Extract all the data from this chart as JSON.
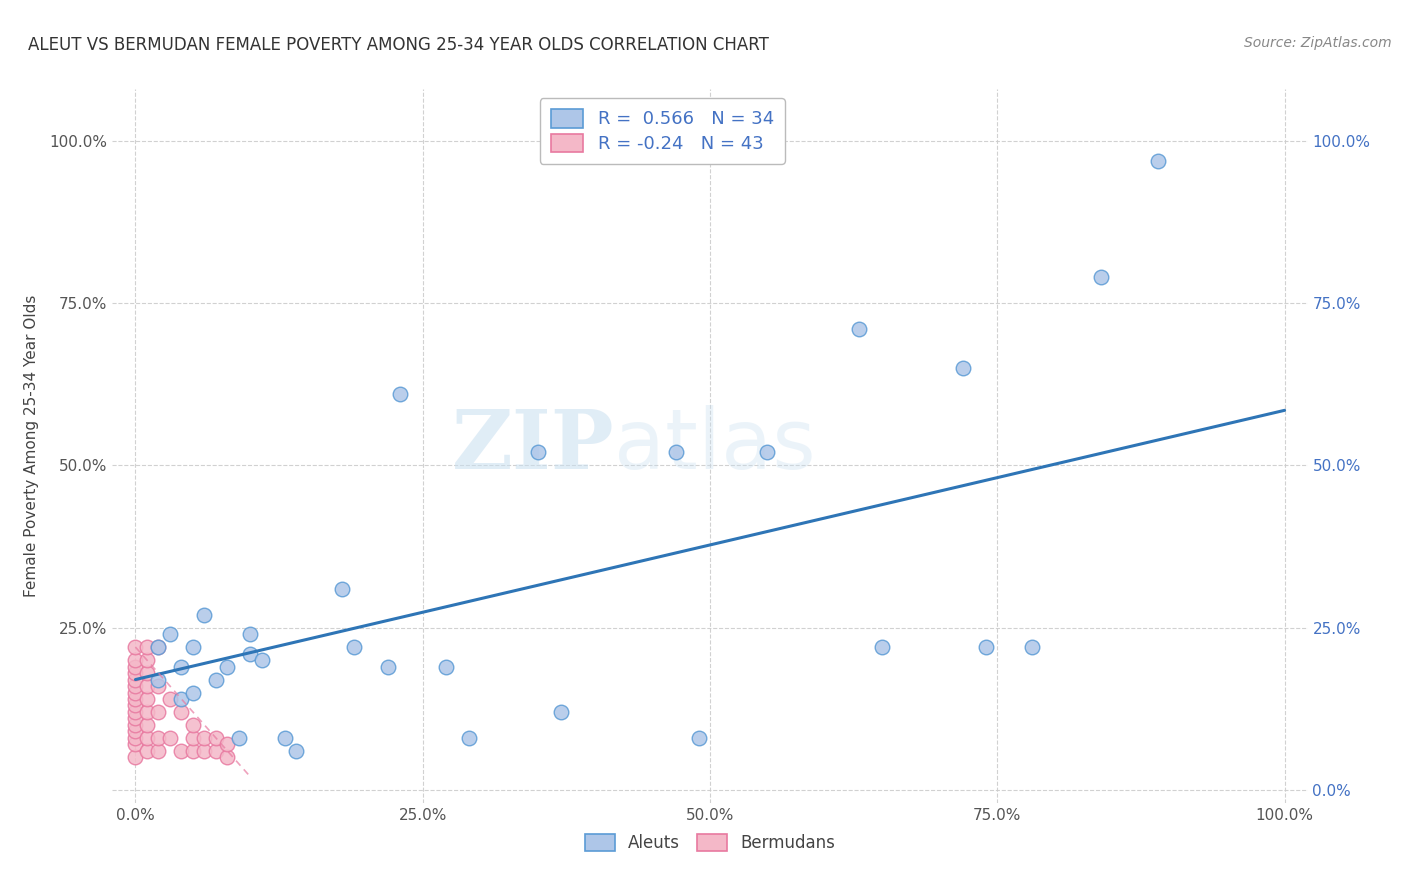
{
  "title": "ALEUT VS BERMUDAN FEMALE POVERTY AMONG 25-34 YEAR OLDS CORRELATION CHART",
  "source": "Source: ZipAtlas.com",
  "ylabel": "Female Poverty Among 25-34 Year Olds",
  "xlim": [
    -0.02,
    1.02
  ],
  "ylim": [
    -0.02,
    1.08
  ],
  "xticks": [
    0.0,
    0.25,
    0.5,
    0.75,
    1.0
  ],
  "yticks": [
    0.0,
    0.25,
    0.5,
    0.75,
    1.0
  ],
  "xticklabels": [
    "0.0%",
    "25.0%",
    "50.0%",
    "75.0%",
    "100.0%"
  ],
  "left_yticklabels": [
    "",
    "25.0%",
    "50.0%",
    "75.0%",
    "100.0%"
  ],
  "right_yticklabels": [
    "0.0%",
    "25.0%",
    "50.0%",
    "75.0%",
    "100.0%"
  ],
  "aleut_color": "#aec6e8",
  "aleut_edge_color": "#5b9bd5",
  "bermudan_color": "#f4b8c8",
  "bermudan_edge_color": "#e879a0",
  "aleut_R": 0.566,
  "aleut_N": 34,
  "bermudan_R": -0.24,
  "bermudan_N": 43,
  "aleut_line_color": "#2e75b6",
  "bermudan_line_color": "#e879a0",
  "watermark_zip": "ZIP",
  "watermark_atlas": "atlas",
  "background_color": "#ffffff",
  "grid_color": "#cccccc",
  "aleut_line_x0": 0.0,
  "aleut_line_y0": 0.17,
  "aleut_line_x1": 1.0,
  "aleut_line_y1": 0.585,
  "bermudan_line_x0": 0.0,
  "bermudan_line_y0": 0.22,
  "bermudan_line_x1": 0.1,
  "bermudan_line_y1": 0.02,
  "aleut_x": [
    0.02,
    0.02,
    0.03,
    0.04,
    0.04,
    0.05,
    0.05,
    0.06,
    0.07,
    0.08,
    0.09,
    0.1,
    0.1,
    0.11,
    0.13,
    0.14,
    0.18,
    0.19,
    0.22,
    0.23,
    0.27,
    0.29,
    0.35,
    0.37,
    0.47,
    0.49,
    0.55,
    0.63,
    0.65,
    0.72,
    0.74,
    0.78,
    0.84,
    0.89
  ],
  "aleut_y": [
    0.22,
    0.17,
    0.24,
    0.19,
    0.14,
    0.22,
    0.15,
    0.27,
    0.17,
    0.19,
    0.08,
    0.24,
    0.21,
    0.2,
    0.08,
    0.06,
    0.31,
    0.22,
    0.19,
    0.61,
    0.19,
    0.08,
    0.52,
    0.12,
    0.52,
    0.08,
    0.52,
    0.71,
    0.22,
    0.65,
    0.22,
    0.22,
    0.79,
    0.97
  ],
  "bermudan_x": [
    0.0,
    0.0,
    0.0,
    0.0,
    0.0,
    0.0,
    0.0,
    0.0,
    0.0,
    0.0,
    0.0,
    0.0,
    0.0,
    0.0,
    0.0,
    0.0,
    0.01,
    0.01,
    0.01,
    0.01,
    0.01,
    0.01,
    0.01,
    0.01,
    0.01,
    0.02,
    0.02,
    0.02,
    0.02,
    0.02,
    0.03,
    0.03,
    0.04,
    0.04,
    0.05,
    0.05,
    0.05,
    0.06,
    0.06,
    0.07,
    0.07,
    0.08,
    0.08
  ],
  "bermudan_y": [
    0.05,
    0.07,
    0.08,
    0.09,
    0.1,
    0.11,
    0.12,
    0.13,
    0.14,
    0.15,
    0.16,
    0.17,
    0.18,
    0.19,
    0.2,
    0.22,
    0.06,
    0.08,
    0.1,
    0.12,
    0.14,
    0.16,
    0.18,
    0.2,
    0.22,
    0.06,
    0.08,
    0.12,
    0.16,
    0.22,
    0.08,
    0.14,
    0.06,
    0.12,
    0.06,
    0.08,
    0.1,
    0.06,
    0.08,
    0.06,
    0.08,
    0.05,
    0.07
  ]
}
